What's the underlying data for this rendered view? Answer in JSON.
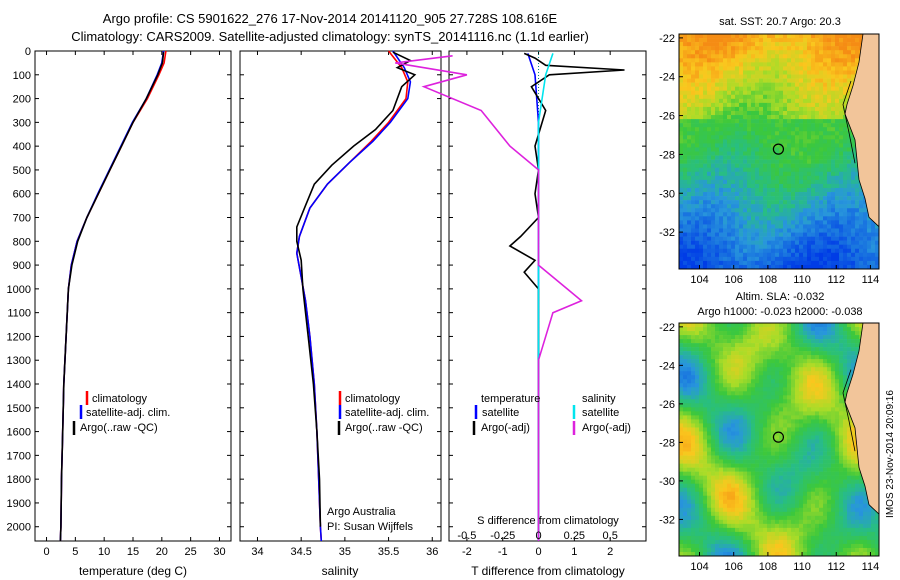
{
  "header": {
    "line1": "Argo profile: CS 5901622_276 17-Nov-2014 20141120_905 27.728S 108.616E",
    "line2": "Climatology: CARS2009. Satellite-adjusted climatology: synTS_20141116.nc (1.1d earlier)"
  },
  "footer_stamp": "IMOS 23-Nov-2014 20:09:16",
  "colors": {
    "climatology": "#ff0000",
    "satellite": "#0000ff",
    "argo": "#000000",
    "salinity_argo": "#dd22dd",
    "salinity_satellite": "#00e5ee"
  },
  "chart_data": [
    {
      "id": "temperature",
      "type": "line",
      "xlabel": "temperature (deg C)",
      "xlim": [
        -2,
        32
      ],
      "xticks": [
        0,
        5,
        10,
        15,
        20,
        25,
        30
      ],
      "ylim": [
        2060,
        0
      ],
      "yticks": [
        0,
        100,
        200,
        300,
        400,
        500,
        600,
        700,
        800,
        900,
        1000,
        1100,
        1200,
        1300,
        1400,
        1500,
        1600,
        1700,
        1800,
        1900,
        2000
      ],
      "legend": {
        "position": "lower-right",
        "entries": [
          "climatology",
          "satellite-adj. clim.",
          "Argo(..raw -QC)"
        ]
      },
      "series": [
        {
          "name": "climatology",
          "color": "#ff0000",
          "points": [
            [
              20.7,
              0
            ],
            [
              20.4,
              50
            ],
            [
              19.5,
              100
            ],
            [
              17.5,
              200
            ],
            [
              15,
              300
            ],
            [
              13,
              400
            ],
            [
              11,
              500
            ],
            [
              9,
              600
            ],
            [
              7,
              700
            ],
            [
              5.3,
              800
            ],
            [
              4.3,
              900
            ],
            [
              3.8,
              1000
            ],
            [
              3.4,
              1200
            ],
            [
              3.0,
              1400
            ],
            [
              2.8,
              1600
            ],
            [
              2.6,
              1800
            ],
            [
              2.5,
              2000
            ],
            [
              2.4,
              2060
            ]
          ]
        },
        {
          "name": "satellite-adj. clim.",
          "color": "#0000ff",
          "points": [
            [
              20.3,
              0
            ],
            [
              20,
              50
            ],
            [
              19.2,
              100
            ],
            [
              17.3,
              200
            ],
            [
              14.9,
              300
            ],
            [
              12.9,
              400
            ],
            [
              10.9,
              500
            ],
            [
              8.9,
              600
            ],
            [
              7,
              700
            ],
            [
              5.3,
              800
            ],
            [
              4.3,
              900
            ],
            [
              3.8,
              1000
            ],
            [
              3.4,
              1200
            ],
            [
              3.0,
              1400
            ],
            [
              2.8,
              1600
            ],
            [
              2.6,
              1800
            ],
            [
              2.5,
              2000
            ],
            [
              2.4,
              2060
            ]
          ]
        },
        {
          "name": "Argo(..raw -QC)",
          "color": "#000000",
          "points": [
            [
              20.3,
              5
            ],
            [
              20.1,
              50
            ],
            [
              19.3,
              100
            ],
            [
              17.3,
              200
            ],
            [
              15,
              300
            ],
            [
              13,
              400
            ],
            [
              11,
              500
            ],
            [
              9,
              600
            ],
            [
              7,
              700
            ],
            [
              5.4,
              800
            ],
            [
              4.4,
              900
            ],
            [
              3.8,
              1000
            ],
            [
              3.4,
              1200
            ],
            [
              3.0,
              1400
            ],
            [
              2.8,
              1600
            ],
            [
              2.6,
              1800
            ],
            [
              2.5,
              2000
            ],
            [
              2.4,
              2060
            ]
          ]
        }
      ]
    },
    {
      "id": "salinity",
      "type": "line",
      "xlabel": "salinity",
      "xlim": [
        33.8,
        36.1
      ],
      "xticks": [
        34,
        34.5,
        35,
        35.5,
        36
      ],
      "ylim": [
        2060,
        0
      ],
      "legend": {
        "position": "lower-right",
        "entries": [
          "climatology",
          "satellite-adj. clim.",
          "Argo(..raw -QC)"
        ]
      },
      "annotation": [
        "Argo Australia",
        "PI: Susan Wijffels"
      ],
      "series": [
        {
          "name": "climatology",
          "color": "#ff0000",
          "points": [
            [
              35.5,
              0
            ],
            [
              35.65,
              70
            ],
            [
              35.72,
              130
            ],
            [
              35.7,
              200
            ],
            [
              35.5,
              300
            ],
            [
              35.3,
              380
            ],
            [
              35.05,
              470
            ],
            [
              34.8,
              560
            ],
            [
              34.6,
              660
            ],
            [
              34.48,
              780
            ],
            [
              34.45,
              850
            ],
            [
              34.5,
              950
            ],
            [
              34.55,
              1050
            ],
            [
              34.6,
              1200
            ],
            [
              34.65,
              1400
            ],
            [
              34.68,
              1600
            ],
            [
              34.7,
              1800
            ],
            [
              34.72,
              2000
            ],
            [
              34.73,
              2060
            ]
          ]
        },
        {
          "name": "satellite-adj. clim.",
          "color": "#0000ff",
          "points": [
            [
              35.55,
              0
            ],
            [
              35.68,
              70
            ],
            [
              35.75,
              130
            ],
            [
              35.72,
              200
            ],
            [
              35.52,
              300
            ],
            [
              35.32,
              380
            ],
            [
              35.05,
              470
            ],
            [
              34.8,
              560
            ],
            [
              34.6,
              660
            ],
            [
              34.48,
              780
            ],
            [
              34.45,
              850
            ],
            [
              34.5,
              950
            ],
            [
              34.55,
              1050
            ],
            [
              34.6,
              1200
            ],
            [
              34.65,
              1400
            ],
            [
              34.68,
              1600
            ],
            [
              34.7,
              1800
            ],
            [
              34.72,
              2000
            ],
            [
              34.73,
              2060
            ]
          ]
        },
        {
          "name": "Argo(..raw -QC)",
          "color": "#000000",
          "points": [
            [
              35.55,
              5
            ],
            [
              35.75,
              40
            ],
            [
              35.6,
              70
            ],
            [
              35.8,
              100
            ],
            [
              35.65,
              150
            ],
            [
              35.55,
              250
            ],
            [
              35.35,
              330
            ],
            [
              35.1,
              400
            ],
            [
              34.85,
              480
            ],
            [
              34.65,
              560
            ],
            [
              34.55,
              650
            ],
            [
              34.45,
              740
            ],
            [
              34.45,
              800
            ],
            [
              34.5,
              880
            ],
            [
              34.52,
              1000
            ],
            [
              34.58,
              1200
            ],
            [
              34.64,
              1400
            ],
            [
              34.68,
              1600
            ],
            [
              34.71,
              1800
            ],
            [
              34.72,
              2000
            ]
          ]
        }
      ]
    },
    {
      "id": "difference",
      "type": "line",
      "xlabel": "T difference from climatology",
      "xlabel_top": "S difference from climatology",
      "xlim": [
        -2.5,
        3
      ],
      "xticks": [
        -2,
        -1,
        0,
        1,
        2
      ],
      "xticks_salinity": [
        "-0.5",
        "-0.25",
        "0",
        "0.25",
        "0.5"
      ],
      "ylim": [
        2060,
        0
      ],
      "legend": {
        "position": "lower",
        "temperature_title": "temperature",
        "salinity_title": "salinity",
        "entries": [
          "satellite",
          "Argo(-adj)",
          "satellite",
          "Argo(-adj)"
        ]
      },
      "series": [
        {
          "name": "temperature satellite",
          "color": "#0000ff",
          "points": [
            [
              -0.3,
              10
            ],
            [
              -0.1,
              100
            ],
            [
              0,
              300
            ],
            [
              0,
              600
            ],
            [
              0,
              1000
            ],
            [
              0,
              2060
            ]
          ]
        },
        {
          "name": "temperature Argo(-adj)",
          "color": "#000000",
          "points": [
            [
              -0.4,
              10
            ],
            [
              -0.1,
              30
            ],
            [
              0.2,
              60
            ],
            [
              2.4,
              80
            ],
            [
              0.3,
              100
            ],
            [
              -0.2,
              150
            ],
            [
              0.2,
              250
            ],
            [
              -0.1,
              400
            ],
            [
              0,
              500
            ],
            [
              -0.1,
              600
            ],
            [
              0,
              700
            ],
            [
              -0.5,
              780
            ],
            [
              -0.8,
              820
            ],
            [
              -0.1,
              880
            ],
            [
              -0.4,
              930
            ],
            [
              0,
              1000
            ],
            [
              0,
              2060
            ]
          ]
        },
        {
          "name": "salinity satellite",
          "color": "#00e5ee",
          "points": [
            [
              0.1,
              10
            ],
            [
              0.05,
              100
            ],
            [
              0,
              300
            ],
            [
              0,
              600
            ],
            [
              0,
              1000
            ],
            [
              0,
              2060
            ]
          ]
        },
        {
          "name": "salinity Argo(-adj)",
          "color": "#dd22dd",
          "points": [
            [
              -0.6,
              20
            ],
            [
              -1,
              50
            ],
            [
              -0.5,
              100
            ],
            [
              -0.8,
              150
            ],
            [
              -0.4,
              250
            ],
            [
              -0.2,
              400
            ],
            [
              0,
              500
            ],
            [
              0,
              700
            ],
            [
              0,
              900
            ],
            [
              0.2,
              1000
            ],
            [
              0.3,
              1050
            ],
            [
              0.1,
              1100
            ],
            [
              0,
              1300
            ],
            [
              0,
              2060
            ]
          ]
        }
      ]
    },
    {
      "id": "sst-map",
      "type": "heatmap",
      "title": "sat. SST: 20.7 Argo: 20.3",
      "xticks": [
        104,
        106,
        108,
        110,
        112,
        114
      ],
      "yticks": [
        -22,
        -24,
        -26,
        -28,
        -30,
        -32
      ],
      "xlim": [
        102.8,
        114.5
      ],
      "ylim": [
        -33.9,
        -21.8
      ],
      "argo_location": [
        108.616,
        -27.728
      ]
    },
    {
      "id": "sla-map",
      "type": "heatmap",
      "title": "Altim. SLA: -0.032",
      "subtitle": "Argo h1000: -0.023 h2000: -0.038",
      "xticks": [
        104,
        106,
        108,
        110,
        112,
        114
      ],
      "yticks": [
        -22,
        -24,
        -26,
        -28,
        -30,
        -32
      ],
      "xlim": [
        102.8,
        114.5
      ],
      "ylim": [
        -33.9,
        -21.8
      ],
      "argo_location": [
        108.616,
        -27.728
      ]
    }
  ]
}
